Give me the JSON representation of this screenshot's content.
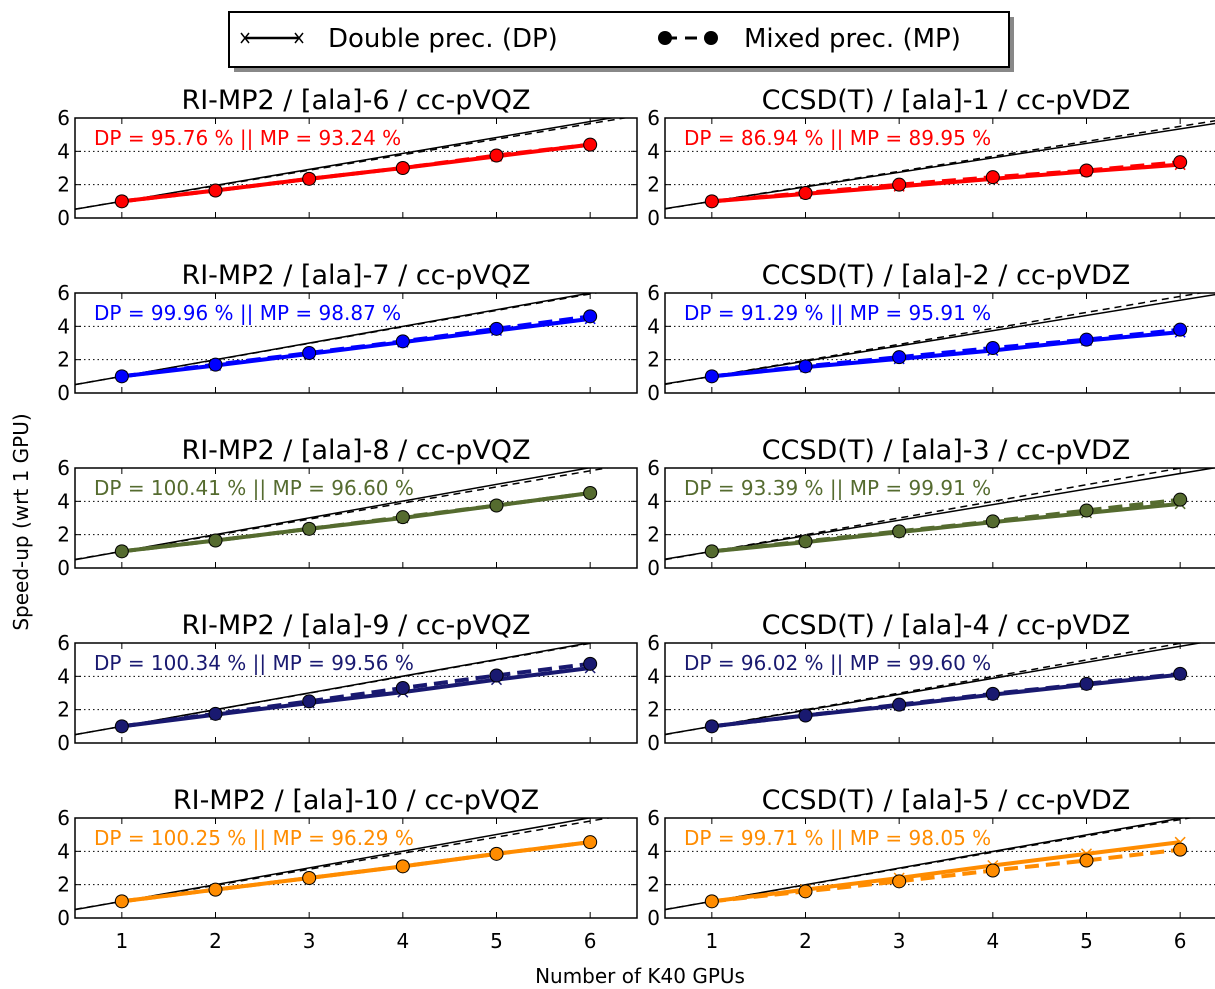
{
  "legend": {
    "dp_label": "Double prec. (DP)",
    "mp_label": "Mixed prec. (MP)",
    "location": "top-center"
  },
  "ylabel": "Speed-up (wrt 1 GPU)",
  "xlabel": "Number of K40 GPUs",
  "chart_data": [
    {
      "type": "line",
      "title": "RI-MP2 / [ala]-6 / cc-pVQZ",
      "annotation": "DP = 95.76 % || MP = 93.24 %",
      "color": "#ff0000",
      "x": [
        1,
        2,
        3,
        4,
        5,
        6
      ],
      "series": [
        {
          "name": "Double prec. (DP)",
          "values": [
            1.0,
            1.65,
            2.35,
            3.0,
            3.7,
            4.4
          ]
        },
        {
          "name": "Mixed prec. (MP)",
          "values": [
            1.0,
            1.65,
            2.35,
            3.0,
            3.75,
            4.4
          ]
        }
      ],
      "ideal_dp_slope": 0.9576,
      "ideal_mp_slope": 0.9324,
      "xlim": [
        0.5,
        6.5
      ],
      "ylim": [
        0,
        6
      ],
      "yticks": [
        0,
        2,
        4,
        6
      ],
      "xticks": [
        1,
        2,
        3,
        4,
        5,
        6
      ],
      "grid_y": [
        2,
        4
      ]
    },
    {
      "type": "line",
      "title": "CCSD(T) / [ala]-1 / cc-pVDZ",
      "annotation": "DP = 86.94 % || MP = 89.95 %",
      "color": "#ff0000",
      "x": [
        1,
        2,
        3,
        4,
        5,
        6
      ],
      "series": [
        {
          "name": "Double prec. (DP)",
          "values": [
            1.0,
            1.45,
            1.9,
            2.35,
            2.8,
            3.2
          ]
        },
        {
          "name": "Mixed prec. (MP)",
          "values": [
            1.0,
            1.5,
            2.0,
            2.45,
            2.85,
            3.35
          ]
        }
      ],
      "ideal_dp_slope": 0.8694,
      "ideal_mp_slope": 0.8995,
      "xlim": [
        0.5,
        6.5
      ],
      "ylim": [
        0,
        6
      ],
      "yticks": [
        0,
        2,
        4,
        6
      ],
      "xticks": [
        1,
        2,
        3,
        4,
        5,
        6
      ],
      "grid_y": [
        2,
        4
      ]
    },
    {
      "type": "line",
      "title": "RI-MP2 / [ala]-7 / cc-pVQZ",
      "annotation": "DP = 99.96 % || MP = 98.87 %",
      "color": "#0000ff",
      "x": [
        1,
        2,
        3,
        4,
        5,
        6
      ],
      "series": [
        {
          "name": "Double prec. (DP)",
          "values": [
            1.0,
            1.65,
            2.35,
            3.05,
            3.75,
            4.45
          ]
        },
        {
          "name": "Mixed prec. (MP)",
          "values": [
            1.0,
            1.7,
            2.4,
            3.1,
            3.85,
            4.6
          ]
        }
      ],
      "ideal_dp_slope": 0.9996,
      "ideal_mp_slope": 0.9887,
      "xlim": [
        0.5,
        6.5
      ],
      "ylim": [
        0,
        6
      ],
      "yticks": [
        0,
        2,
        4,
        6
      ],
      "xticks": [
        1,
        2,
        3,
        4,
        5,
        6
      ],
      "grid_y": [
        2,
        4
      ]
    },
    {
      "type": "line",
      "title": "CCSD(T) / [ala]-2 / cc-pVDZ",
      "annotation": "DP = 91.29 % || MP = 95.91 %",
      "color": "#0000ff",
      "x": [
        1,
        2,
        3,
        4,
        5,
        6
      ],
      "series": [
        {
          "name": "Double prec. (DP)",
          "values": [
            1.0,
            1.55,
            2.05,
            2.55,
            3.15,
            3.65
          ]
        },
        {
          "name": "Mixed prec. (MP)",
          "values": [
            1.0,
            1.6,
            2.15,
            2.7,
            3.2,
            3.8
          ]
        }
      ],
      "ideal_dp_slope": 0.9129,
      "ideal_mp_slope": 0.9591,
      "xlim": [
        0.5,
        6.5
      ],
      "ylim": [
        0,
        6
      ],
      "yticks": [
        0,
        2,
        4,
        6
      ],
      "xticks": [
        1,
        2,
        3,
        4,
        5,
        6
      ],
      "grid_y": [
        2,
        4
      ]
    },
    {
      "type": "line",
      "title": "RI-MP2 / [ala]-8 / cc-pVQZ",
      "annotation": "DP = 100.41 % || MP = 96.60 %",
      "color": "#556b2f",
      "x": [
        1,
        2,
        3,
        4,
        5,
        6
      ],
      "series": [
        {
          "name": "Double prec. (DP)",
          "values": [
            1.0,
            1.65,
            2.35,
            3.0,
            3.75,
            4.5
          ]
        },
        {
          "name": "Mixed prec. (MP)",
          "values": [
            1.0,
            1.65,
            2.35,
            3.05,
            3.75,
            4.5
          ]
        }
      ],
      "ideal_dp_slope": 1.0041,
      "ideal_mp_slope": 0.966,
      "xlim": [
        0.5,
        6.5
      ],
      "ylim": [
        0,
        6
      ],
      "yticks": [
        0,
        2,
        4,
        6
      ],
      "xticks": [
        1,
        2,
        3,
        4,
        5,
        6
      ],
      "grid_y": [
        2,
        4
      ]
    },
    {
      "type": "line",
      "title": "CCSD(T) / [ala]-3 / cc-pVDZ",
      "annotation": "DP = 93.39 % || MP = 99.91 %",
      "color": "#556b2f",
      "x": [
        1,
        2,
        3,
        4,
        5,
        6
      ],
      "series": [
        {
          "name": "Double prec. (DP)",
          "values": [
            1.0,
            1.55,
            2.15,
            2.75,
            3.3,
            3.85
          ]
        },
        {
          "name": "Mixed prec. (MP)",
          "values": [
            1.0,
            1.6,
            2.2,
            2.8,
            3.45,
            4.1
          ]
        }
      ],
      "ideal_dp_slope": 0.9339,
      "ideal_mp_slope": 0.9991,
      "xlim": [
        0.5,
        6.5
      ],
      "ylim": [
        0,
        6
      ],
      "yticks": [
        0,
        2,
        4,
        6
      ],
      "xticks": [
        1,
        2,
        3,
        4,
        5,
        6
      ],
      "grid_y": [
        2,
        4
      ]
    },
    {
      "type": "line",
      "title": "RI-MP2 / [ala]-9 / cc-pVQZ",
      "annotation": "DP = 100.34 % || MP = 99.56 %",
      "color": "#191970",
      "x": [
        1,
        2,
        3,
        4,
        5,
        6
      ],
      "series": [
        {
          "name": "Double prec. (DP)",
          "values": [
            1.0,
            1.7,
            2.4,
            3.05,
            3.8,
            4.5
          ]
        },
        {
          "name": "Mixed prec. (MP)",
          "values": [
            1.0,
            1.75,
            2.5,
            3.3,
            4.05,
            4.75
          ]
        }
      ],
      "ideal_dp_slope": 1.0034,
      "ideal_mp_slope": 0.9956,
      "xlim": [
        0.5,
        6.5
      ],
      "ylim": [
        0,
        6
      ],
      "yticks": [
        0,
        2,
        4,
        6
      ],
      "xticks": [
        1,
        2,
        3,
        4,
        5,
        6
      ],
      "grid_y": [
        2,
        4
      ]
    },
    {
      "type": "line",
      "title": "CCSD(T) / [ala]-4 / cc-pVDZ",
      "annotation": "DP = 96.02 % || MP = 99.60 %",
      "color": "#191970",
      "x": [
        1,
        2,
        3,
        4,
        5,
        6
      ],
      "series": [
        {
          "name": "Double prec. (DP)",
          "values": [
            1.0,
            1.65,
            2.25,
            2.9,
            3.5,
            4.1
          ]
        },
        {
          "name": "Mixed prec. (MP)",
          "values": [
            1.0,
            1.65,
            2.3,
            2.95,
            3.55,
            4.15
          ]
        }
      ],
      "ideal_dp_slope": 0.9602,
      "ideal_mp_slope": 0.996,
      "xlim": [
        0.5,
        6.5
      ],
      "ylim": [
        0,
        6
      ],
      "yticks": [
        0,
        2,
        4,
        6
      ],
      "xticks": [
        1,
        2,
        3,
        4,
        5,
        6
      ],
      "grid_y": [
        2,
        4
      ]
    },
    {
      "type": "line",
      "title": "RI-MP2 / [ala]-10 / cc-pVQZ",
      "annotation": "DP = 100.25 % || MP = 96.29 %",
      "color": "#ff8c00",
      "x": [
        1,
        2,
        3,
        4,
        5,
        6
      ],
      "series": [
        {
          "name": "Double prec. (DP)",
          "values": [
            1.0,
            1.7,
            2.4,
            3.1,
            3.85,
            4.55
          ]
        },
        {
          "name": "Mixed prec. (MP)",
          "values": [
            1.0,
            1.7,
            2.4,
            3.1,
            3.85,
            4.55
          ]
        }
      ],
      "ideal_dp_slope": 1.0025,
      "ideal_mp_slope": 0.9629,
      "xlim": [
        0.5,
        6.5
      ],
      "ylim": [
        0,
        6
      ],
      "yticks": [
        0,
        2,
        4,
        6
      ],
      "xticks": [
        1,
        2,
        3,
        4,
        5,
        6
      ],
      "grid_y": [
        2,
        4
      ]
    },
    {
      "type": "line",
      "title": "CCSD(T) / [ala]-5 / cc-pVDZ",
      "annotation": "DP = 99.71 % || MP = 98.05 %",
      "color": "#ff8c00",
      "x": [
        1,
        2,
        3,
        4,
        5,
        6
      ],
      "series": [
        {
          "name": "Double prec. (DP)",
          "values": [
            1.0,
            1.7,
            2.4,
            3.15,
            3.85,
            4.55
          ]
        },
        {
          "name": "Mixed prec. (MP)",
          "values": [
            1.0,
            1.6,
            2.2,
            2.85,
            3.45,
            4.1
          ]
        }
      ],
      "ideal_dp_slope": 0.9971,
      "ideal_mp_slope": 0.9805,
      "xlim": [
        0.5,
        6.5
      ],
      "ylim": [
        0,
        6
      ],
      "yticks": [
        0,
        2,
        4,
        6
      ],
      "xticks": [
        1,
        2,
        3,
        4,
        5,
        6
      ],
      "grid_y": [
        2,
        4
      ]
    }
  ]
}
